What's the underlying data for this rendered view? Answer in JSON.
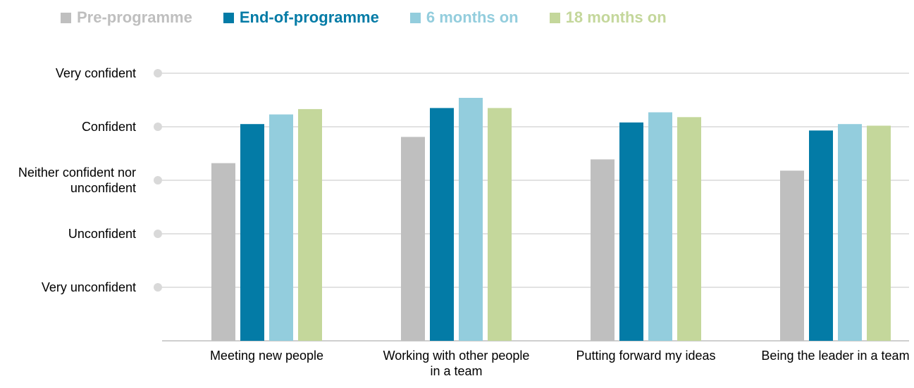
{
  "chart_data": {
    "type": "bar",
    "categories": [
      "Meeting new people",
      "Working with other people in a team",
      "Putting forward my ideas",
      "Being the leader in a team"
    ],
    "series": [
      {
        "name": "Pre-programme",
        "color": "#bfbfbf",
        "values": [
          3.32,
          3.81,
          3.39,
          3.18
        ]
      },
      {
        "name": "End-of-programme",
        "color": "#037ba6",
        "values": [
          4.05,
          4.35,
          4.08,
          3.93
        ]
      },
      {
        "name": "6 months on",
        "color": "#93cddd",
        "values": [
          4.23,
          4.54,
          4.27,
          4.05
        ]
      },
      {
        "name": "18 months on",
        "color": "#c4d79b",
        "values": [
          4.33,
          4.35,
          4.18,
          4.02
        ]
      }
    ],
    "ylim": [
      0,
      5
    ],
    "yticks": [
      {
        "value": 1,
        "label": "Very unconfident"
      },
      {
        "value": 2,
        "label": "Unconfident"
      },
      {
        "value": 3,
        "label": "Neither confident nor unconfident"
      },
      {
        "value": 4,
        "label": "Confident"
      },
      {
        "value": 5,
        "label": "Very confident"
      }
    ],
    "grid": true
  }
}
